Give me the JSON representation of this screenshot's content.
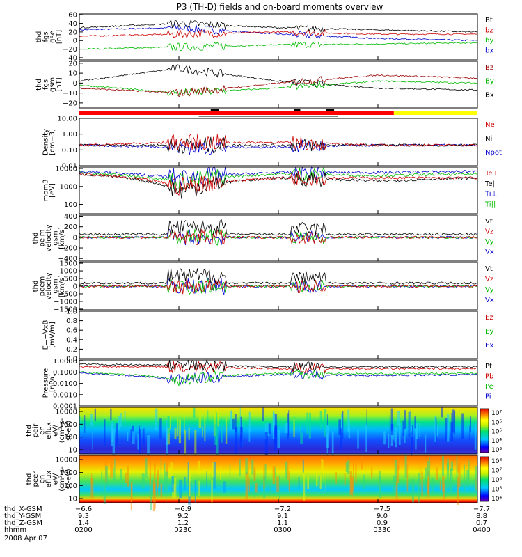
{
  "title": "P3 (TH-D) fields and on-board moments overview",
  "panels": [
    {
      "id": "fgs-gse",
      "ylabel": [
        "thd",
        "fgs",
        "gse",
        "[nT]"
      ],
      "ticks": [
        "60",
        "40",
        "20",
        "0",
        "−20",
        "−40"
      ],
      "tick_values": [
        60,
        40,
        20,
        0,
        -20,
        -40
      ],
      "ylim": [
        -45,
        62
      ],
      "legend": [
        {
          "label": "Bt",
          "color": "#000000"
        },
        {
          "label": "bz",
          "color": "#cc0000"
        },
        {
          "label": "by",
          "color": "#00bb00"
        },
        {
          "label": "bx",
          "color": "#0000cc"
        }
      ]
    },
    {
      "id": "fgs-gsm",
      "ylabel": [
        "thd",
        "fgs",
        "gsm",
        "[nT]"
      ],
      "ticks": [
        "20",
        "10",
        "0",
        "−10",
        "−20"
      ],
      "tick_values": [
        20,
        10,
        0,
        -10,
        -20
      ],
      "ylim": [
        -25,
        22
      ],
      "legend": [
        {
          "label": "Bz",
          "color": "#990000"
        },
        {
          "label": "By",
          "color": "#00bb00"
        },
        {
          "label": "Bx",
          "color": "#000000"
        }
      ]
    },
    {
      "id": "density",
      "ylabel": [
        "Density",
        "[cm−3]"
      ],
      "ticks": [
        "10.00",
        "1.00",
        "0.10",
        "0.01"
      ],
      "tick_values": [
        10,
        1,
        0.1,
        0.01
      ],
      "ylim": [
        0.01,
        10
      ],
      "log": true,
      "legend": [
        {
          "label": "Ne",
          "color": "#cc0000"
        },
        {
          "label": "Ni",
          "color": "#000000"
        },
        {
          "label": "Npot",
          "color": "#0000cc"
        }
      ]
    },
    {
      "id": "temperature",
      "ylabel": [
        "mom3",
        "[eV]"
      ],
      "ticks": [
        "10000",
        "1000",
        "100"
      ],
      "tick_values": [
        10000,
        1000,
        100
      ],
      "ylim": [
        30,
        12000
      ],
      "log": true,
      "legend": [
        {
          "label": "Te⊥",
          "color": "#cc0000"
        },
        {
          "label": "Te||",
          "color": "#000000"
        },
        {
          "label": "Ti⊥",
          "color": "#0000cc"
        },
        {
          "label": "Ti||",
          "color": "#00bb00"
        }
      ]
    },
    {
      "id": "peim-velocity",
      "ylabel": [
        "thd",
        "peim",
        "velocity",
        "gsm",
        "[km/s]"
      ],
      "ticks": [
        "400",
        "200",
        "0",
        "−200",
        "−400"
      ],
      "tick_values": [
        400,
        200,
        0,
        -200,
        -400
      ],
      "ylim": [
        -450,
        420
      ],
      "legend": [
        {
          "label": "Vt",
          "color": "#000000"
        },
        {
          "label": "Vz",
          "color": "#cc0000"
        },
        {
          "label": "Vy",
          "color": "#00bb00"
        },
        {
          "label": "Vx",
          "color": "#0000cc"
        }
      ]
    },
    {
      "id": "peem-velocity",
      "ylabel": [
        "thd",
        "peem",
        "velocity",
        "gsm",
        "[km/s]"
      ],
      "ticks": [
        "1500",
        "1000",
        "500",
        "0",
        "−500",
        "−1000",
        "−1500"
      ],
      "tick_values": [
        1500,
        1000,
        500,
        0,
        -500,
        -1000,
        -1500
      ],
      "ylim": [
        -1550,
        1550
      ],
      "legend": [
        {
          "label": "Vt",
          "color": "#000000"
        },
        {
          "label": "Vz",
          "color": "#cc0000"
        },
        {
          "label": "Vy",
          "color": "#00bb00"
        },
        {
          "label": "Vx",
          "color": "#0000cc"
        }
      ]
    },
    {
      "id": "efield",
      "ylabel": [
        "E=−VxB",
        "[mV/m]"
      ],
      "ticks": [
        "1.0",
        "0.8",
        "0.6",
        "0.4",
        "0.2",
        "0.0"
      ],
      "tick_values": [
        1.0,
        0.8,
        0.6,
        0.4,
        0.2,
        0.0
      ],
      "ylim": [
        0,
        1
      ],
      "legend": [
        {
          "label": "Ez",
          "color": "#cc0000"
        },
        {
          "label": "Ey",
          "color": "#00bb00"
        },
        {
          "label": "Ex",
          "color": "#0000cc"
        }
      ]
    },
    {
      "id": "pressure",
      "ylabel": [
        "Pressure",
        "[nPa]"
      ],
      "ticks": [
        "1.0000",
        "0.1000",
        "0.0100",
        "0.0010",
        "0.0001"
      ],
      "tick_values": [
        1,
        0.1,
        0.01,
        0.001,
        0.0001
      ],
      "ylim": [
        0.0001,
        1.2
      ],
      "log": true,
      "legend": [
        {
          "label": "Pt",
          "color": "#000000"
        },
        {
          "label": "Pb",
          "color": "#cc0000"
        },
        {
          "label": "Pe",
          "color": "#00bb00"
        },
        {
          "label": "Pi",
          "color": "#0000cc"
        }
      ]
    },
    {
      "id": "peir-spec",
      "ylabel": [
        "thd",
        "peir",
        "en",
        "eflux",
        "eV/",
        "(cm²-s-",
        "sr-eV)"
      ],
      "ticks": [
        "10000",
        "1000",
        "100",
        "10"
      ],
      "colorbar": [
        "10⁷",
        "10⁶",
        "10⁵",
        "10⁴",
        "10³"
      ]
    },
    {
      "id": "peer-spec",
      "ylabel": [
        "thd",
        "peer",
        "en",
        "eflux",
        "eV/",
        "(cm²-s-",
        "sr-eV)"
      ],
      "ticks": [
        "10000",
        "1000",
        "100",
        "10"
      ],
      "colorbar": [
        "10⁸",
        "10⁷",
        "10⁶",
        "10⁵",
        "10⁴"
      ]
    }
  ],
  "xaxis": {
    "rows": [
      {
        "label": "thd_X-GSM",
        "values": [
          "−6.6",
          "−6.9",
          "−7.2",
          "−7.5",
          "−7.7"
        ]
      },
      {
        "label": "thd_Y-GSM",
        "values": [
          "9.3",
          "9.2",
          "9.1",
          "9.0",
          "8.8"
        ]
      },
      {
        "label": "thd_Z-GSM",
        "values": [
          "1.4",
          "1.2",
          "1.1",
          "0.9",
          "0.7"
        ]
      },
      {
        "label": "hhmm",
        "values": [
          "0200",
          "0230",
          "0300",
          "0330",
          "0400"
        ]
      }
    ],
    "date": "2008 Apr 07"
  },
  "chart_data": {
    "type": "line",
    "title": "P3 (TH-D) fields and on-board moments overview",
    "x": [
      "0200",
      "0230",
      "0300",
      "0330",
      "0400"
    ],
    "xlabel": "hhmm",
    "date": "2008 Apr 07",
    "series": [
      {
        "name": "Bt",
        "values": [
          30,
          40,
          30,
          25,
          20
        ]
      },
      {
        "name": "bz",
        "values": [
          10,
          15,
          20,
          15,
          15
        ]
      },
      {
        "name": "by",
        "values": [
          -20,
          -15,
          -10,
          -8,
          -5
        ]
      },
      {
        "name": "bx",
        "values": [
          25,
          30,
          15,
          5,
          0
        ]
      },
      {
        "name": "Bz",
        "values": [
          -5,
          -10,
          0,
          8,
          5
        ]
      },
      {
        "name": "By",
        "values": [
          -2,
          -10,
          -5,
          2,
          0
        ]
      },
      {
        "name": "Bx",
        "values": [
          2,
          15,
          2,
          -5,
          -7
        ]
      },
      {
        "name": "Ne",
        "values": [
          0.2,
          0.3,
          0.3,
          0.2,
          0.2
        ]
      },
      {
        "name": "Ni",
        "values": [
          0.2,
          0.2,
          0.2,
          0.2,
          0.2
        ]
      },
      {
        "name": "Npot",
        "values": [
          0.2,
          0.15,
          0.15,
          0.2,
          0.2
        ]
      },
      {
        "name": "Te⊥",
        "values": [
          5000,
          1000,
          3000,
          3000,
          3000
        ]
      },
      {
        "name": "Te||",
        "values": [
          5000,
          500,
          3000,
          2000,
          3000
        ]
      },
      {
        "name": "Ti⊥",
        "values": [
          7000,
          3000,
          6000,
          6000,
          7000
        ]
      },
      {
        "name": "Ti||",
        "values": [
          6000,
          2000,
          5000,
          4000,
          5000
        ]
      },
      {
        "name": "Pt",
        "values": [
          0.5,
          0.4,
          0.3,
          0.3,
          0.3
        ]
      },
      {
        "name": "Pb",
        "values": [
          0.3,
          0.3,
          0.2,
          0.2,
          0.2
        ]
      },
      {
        "name": "Pe",
        "values": [
          0.1,
          0.02,
          0.08,
          0.07,
          0.08
        ]
      },
      {
        "name": "Pi",
        "values": [
          0.08,
          0.02,
          0.06,
          0.05,
          0.06
        ]
      }
    ]
  }
}
